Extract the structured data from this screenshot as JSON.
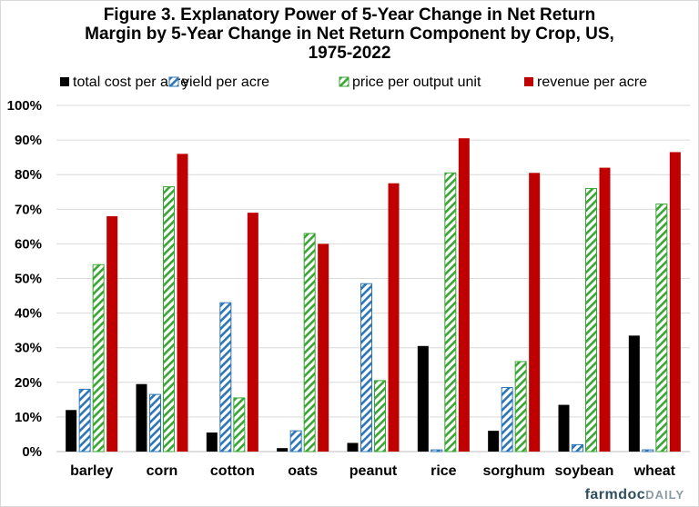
{
  "chart_data": {
    "type": "bar",
    "title_lines": [
      "Figure 3.  Explanatory Power of 5-Year Change in Net Return",
      "Margin by 5-Year Change in Net Return Component by Crop, US,",
      "1975-2022"
    ],
    "categories": [
      "barley",
      "corn",
      "cotton",
      "oats",
      "peanut",
      "rice",
      "sorghum",
      "soybean",
      "wheat"
    ],
    "series": [
      {
        "name": "total cost per acre",
        "color": "#000000",
        "pattern": "solid",
        "values": [
          12,
          19.5,
          5.5,
          1,
          2.5,
          30.5,
          6,
          13.5,
          33.5
        ]
      },
      {
        "name": "yield per acre",
        "color": "#2e75b6",
        "pattern": "hatch",
        "values": [
          18,
          16.5,
          43,
          6,
          48.5,
          0.5,
          18.5,
          2,
          0.5
        ]
      },
      {
        "name": "price per output unit",
        "color": "#3aa635",
        "pattern": "hatch",
        "values": [
          54,
          76.5,
          15.5,
          63,
          20.5,
          80.5,
          26,
          76,
          71.5
        ]
      },
      {
        "name": "revenue per acre",
        "color": "#c00000",
        "pattern": "solid",
        "values": [
          68,
          86,
          69,
          60,
          77.5,
          90.5,
          80.5,
          82,
          86.5
        ]
      }
    ],
    "ylim": [
      0,
      100
    ],
    "yticks": [
      "0%",
      "10%",
      "20%",
      "30%",
      "40%",
      "50%",
      "60%",
      "70%",
      "80%",
      "90%",
      "100%"
    ],
    "grid": true,
    "legend_position": "top"
  },
  "branding": {
    "farmdoc": "farmdoc",
    "daily": "DAILY"
  }
}
